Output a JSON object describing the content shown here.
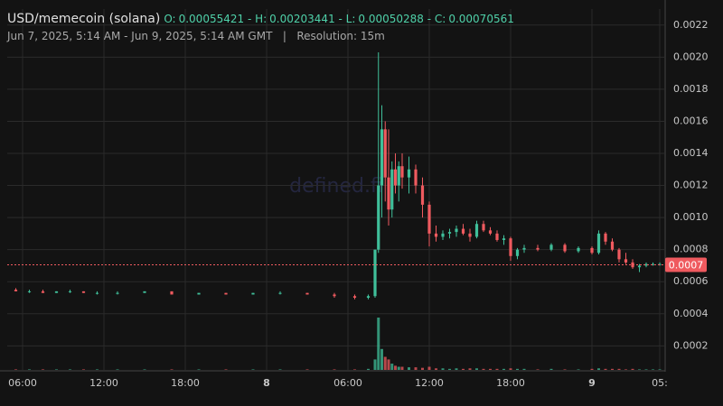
{
  "chart_data": {
    "type": "candlestick",
    "title": "USD/memecoin (solana)",
    "subtitle": "Jun 7, 2025, 5:14 AM - Jun 9, 2025, 5:14 AM GMT   |   Resolution: 15m",
    "watermark": "defined.fi",
    "ohlc": [
      {
        "label": "O:",
        "value": 0.00055421
      },
      {
        "label": "H:",
        "value": 0.00203441
      },
      {
        "label": "L:",
        "value": 0.00050288
      },
      {
        "label": "C:",
        "value": 0.00070561
      }
    ],
    "last_price": {
      "value": 0.00070561,
      "label": "0.0007"
    },
    "up_color": "#3fbf9a",
    "down_color": "#ef5a5f",
    "grid": true,
    "xlim": [
      4.867,
      53.333
    ],
    "xticks": [
      {
        "value": 6,
        "label": "06:00"
      },
      {
        "value": 12,
        "label": "12:00"
      },
      {
        "value": 18,
        "label": "18:00"
      },
      {
        "value": 24,
        "label": "8"
      },
      {
        "value": 30,
        "label": "06:00"
      },
      {
        "value": 36,
        "label": "12:00"
      },
      {
        "value": 42,
        "label": "18:00"
      },
      {
        "value": 48,
        "label": "9"
      },
      {
        "value": 53,
        "label": "05:"
      }
    ],
    "ylim": [
      5e-05,
      0.0023
    ],
    "yticks": [
      0.0002,
      0.0004,
      0.0006,
      0.0008,
      {
        "value": 0.001,
        "label": "0.0010"
      },
      0.0012,
      0.0014,
      0.0016,
      0.0018,
      {
        "value": 0.002,
        "label": "0.0020"
      },
      0.0022
    ],
    "x": [
      5.5,
      6.5,
      7.5,
      8.5,
      9.5,
      10.5,
      11.5,
      13,
      15,
      17,
      19,
      21,
      23,
      25,
      27,
      29,
      30.5,
      31.5,
      32,
      32.25,
      32.5,
      32.75,
      33,
      33.25,
      33.5,
      33.75,
      34,
      34.5,
      35,
      35.5,
      36,
      36.5,
      37,
      37.5,
      38,
      38.5,
      39,
      39.5,
      40,
      40.5,
      41,
      41.5,
      42,
      42.5,
      43,
      44,
      45,
      46,
      47,
      48,
      48.5,
      49,
      49.5,
      50,
      50.5,
      51,
      51.5,
      52,
      52.5,
      53
    ],
    "open": [
      0.00055,
      0.00054,
      0.00054,
      0.00053,
      0.00054,
      0.00054,
      0.00053,
      0.00053,
      0.00053,
      0.00054,
      0.00052,
      0.00053,
      0.00052,
      0.00053,
      0.00053,
      0.00052,
      0.00051,
      0.0005,
      0.00051,
      0.0008,
      0.0012,
      0.00155,
      0.00125,
      0.00105,
      0.0013,
      0.0012,
      0.00132,
      0.00125,
      0.0013,
      0.0012,
      0.00108,
      0.0009,
      0.00088,
      0.0009,
      0.00091,
      0.00093,
      0.0009,
      0.00088,
      0.00096,
      0.00092,
      0.0009,
      0.00086,
      0.00087,
      0.00076,
      0.0008,
      0.00081,
      0.0008,
      0.00083,
      0.00079,
      0.00081,
      0.00078,
      0.0009,
      0.00085,
      0.0008,
      0.00074,
      0.00072,
      0.00069,
      0.0007,
      0.00071,
      0.00071
    ],
    "high": [
      0.00056,
      0.00055,
      0.00055,
      0.00054,
      0.00055,
      0.00054,
      0.00054,
      0.00054,
      0.00054,
      0.00054,
      0.00053,
      0.00053,
      0.00053,
      0.00054,
      0.00053,
      0.00053,
      0.00052,
      0.00052,
      0.0008,
      0.00203,
      0.0017,
      0.0016,
      0.00155,
      0.00135,
      0.0014,
      0.00135,
      0.0014,
      0.00138,
      0.00133,
      0.00125,
      0.0011,
      0.00095,
      0.00092,
      0.00093,
      0.00095,
      0.00096,
      0.00093,
      0.00098,
      0.00098,
      0.00094,
      0.00092,
      0.00089,
      0.00088,
      0.00081,
      0.00083,
      0.00083,
      0.00084,
      0.00084,
      0.00082,
      0.00082,
      0.00092,
      0.00091,
      0.00087,
      0.00081,
      0.00078,
      0.00074,
      0.00071,
      0.00072,
      0.00072,
      0.00072
    ],
    "low": [
      0.00054,
      0.00053,
      0.00053,
      0.00053,
      0.00053,
      0.00053,
      0.00052,
      0.00052,
      0.00053,
      0.00052,
      0.00052,
      0.00052,
      0.00052,
      0.00052,
      0.00052,
      0.0005,
      0.00049,
      0.00049,
      0.0005,
      0.00078,
      0.001,
      0.0011,
      0.00095,
      0.001,
      0.00115,
      0.0011,
      0.00118,
      0.00115,
      0.00115,
      0.001,
      0.00082,
      0.00085,
      0.00086,
      0.00087,
      0.00088,
      0.00089,
      0.00085,
      0.00087,
      0.00091,
      0.00089,
      0.00085,
      0.00083,
      0.00073,
      0.00074,
      0.00078,
      0.00079,
      0.00079,
      0.00078,
      0.00078,
      0.00077,
      0.00077,
      0.00083,
      0.00079,
      0.00072,
      0.00071,
      0.00068,
      0.00066,
      0.00069,
      0.0007,
      0.0007
    ],
    "close": [
      0.00054,
      0.00054,
      0.00053,
      0.00054,
      0.00054,
      0.00053,
      0.00053,
      0.00053,
      0.00054,
      0.00052,
      0.00053,
      0.00052,
      0.00053,
      0.00053,
      0.00052,
      0.00051,
      0.0005,
      0.00051,
      0.0008,
      0.0012,
      0.00155,
      0.00125,
      0.00105,
      0.0013,
      0.0012,
      0.00132,
      0.00125,
      0.0013,
      0.0012,
      0.00108,
      0.0009,
      0.00088,
      0.0009,
      0.00091,
      0.00093,
      0.0009,
      0.00088,
      0.00096,
      0.00092,
      0.0009,
      0.00086,
      0.00087,
      0.00076,
      0.0008,
      0.00081,
      0.0008,
      0.00083,
      0.00079,
      0.00081,
      0.00078,
      0.0009,
      0.00085,
      0.0008,
      0.00074,
      0.00072,
      0.00069,
      0.0007,
      0.00071,
      0.00071,
      0.00071
    ],
    "volume": [
      1,
      1,
      1,
      1,
      1,
      1,
      1,
      1,
      1,
      1,
      1,
      1,
      1,
      1,
      1,
      1,
      1,
      2,
      20,
      100,
      40,
      25,
      20,
      12,
      8,
      6,
      6,
      5,
      5,
      4,
      6,
      3,
      3,
      2,
      3,
      2,
      3,
      3,
      2,
      2,
      2,
      2,
      3,
      2,
      2,
      1,
      2,
      1,
      1,
      2,
      3,
      2,
      2,
      2,
      1,
      2,
      1,
      1,
      1,
      1
    ]
  }
}
